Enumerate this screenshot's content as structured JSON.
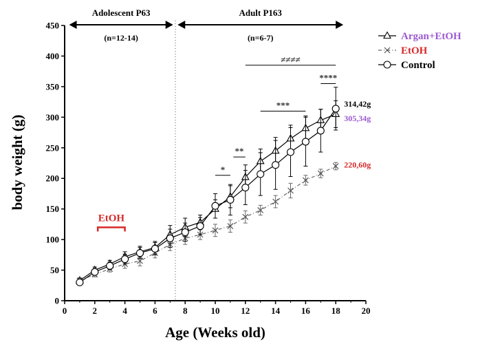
{
  "chart_data": {
    "type": "line",
    "xlabel": "Age (Weeks old)",
    "ylabel": "body weight (g)",
    "xlim": [
      0,
      20
    ],
    "ylim": [
      0,
      450
    ],
    "xticks": [
      0,
      2,
      4,
      6,
      8,
      10,
      12,
      14,
      16,
      18,
      20
    ],
    "yticks": [
      0,
      50,
      100,
      150,
      200,
      250,
      300,
      350,
      400,
      450
    ],
    "grid": false,
    "legend_position": "top-right",
    "series": [
      {
        "name": "Argan+EtOH",
        "color": "#9b59d0",
        "line_color": "#000000",
        "marker": "triangle",
        "dash": "solid",
        "x": [
          1,
          2,
          3,
          4,
          5,
          6,
          7,
          8,
          9,
          10,
          11,
          12,
          13,
          14,
          15,
          16,
          17,
          18
        ],
        "y": [
          33,
          50,
          60,
          72,
          80,
          87,
          108,
          120,
          128,
          150,
          170,
          202,
          228,
          245,
          265,
          282,
          295,
          305
        ],
        "err": [
          4,
          5,
          6,
          8,
          9,
          10,
          15,
          15,
          12,
          15,
          18,
          20,
          20,
          22,
          22,
          20,
          18,
          22
        ]
      },
      {
        "name": "EtOH",
        "color": "#d62828",
        "line_color": "#666666",
        "marker": "x",
        "dash": "dashdot",
        "x": [
          1,
          2,
          3,
          4,
          5,
          6,
          7,
          8,
          9,
          10,
          11,
          12,
          13,
          14,
          15,
          16,
          17,
          18
        ],
        "y": [
          33,
          43,
          52,
          60,
          65,
          78,
          92,
          102,
          108,
          115,
          122,
          137,
          148,
          162,
          180,
          197,
          208,
          220
        ],
        "err": [
          3,
          4,
          5,
          7,
          8,
          8,
          10,
          10,
          8,
          10,
          10,
          10,
          8,
          10,
          12,
          8,
          7,
          6
        ]
      },
      {
        "name": "Control",
        "color": "#000000",
        "line_color": "#000000",
        "marker": "circle",
        "dash": "solid",
        "x": [
          1,
          2,
          3,
          4,
          5,
          6,
          7,
          8,
          9,
          10,
          11,
          12,
          13,
          14,
          15,
          16,
          17,
          18
        ],
        "y": [
          30,
          47,
          57,
          68,
          78,
          85,
          102,
          112,
          122,
          155,
          165,
          185,
          207,
          222,
          243,
          260,
          278,
          314
        ],
        "err": [
          3,
          5,
          6,
          8,
          9,
          10,
          15,
          15,
          14,
          20,
          25,
          28,
          35,
          40,
          40,
          40,
          35,
          35
        ]
      }
    ],
    "end_labels": [
      {
        "text": "314,42g",
        "x": 18,
        "y": 322,
        "color": "#000000"
      },
      {
        "text": "305,34g",
        "x": 18,
        "y": 298,
        "color": "#9b59d0"
      },
      {
        "text": "220,60g",
        "x": 18,
        "y": 222,
        "color": "#d62828"
      }
    ],
    "phases": [
      {
        "label": "Adolescent P63",
        "n_label": "(n=12-14)",
        "x_start": 0.3,
        "x_end": 7.2
      },
      {
        "label": "Adult P163",
        "n_label": "(n=6-7)",
        "x_start": 7.5,
        "x_end": 18.5
      }
    ],
    "divider_x": 7.35,
    "treatment_marker": {
      "label": "EtOH",
      "x_start": 2.2,
      "x_end": 4.0,
      "y": 120,
      "color": "#d62828"
    },
    "significance": [
      {
        "label": "*",
        "x_start": 10.0,
        "x_end": 11.0,
        "y": 205
      },
      {
        "label": "**",
        "x_start": 11.2,
        "x_end": 12.0,
        "y": 235
      },
      {
        "label": "***",
        "x_start": 13.0,
        "x_end": 16.0,
        "y": 310
      },
      {
        "label": "****",
        "x_start": 17.0,
        "x_end": 18.0,
        "y": 355
      },
      {
        "label": "≠≠≠≠",
        "x_start": 12.0,
        "x_end": 18.0,
        "y": 385
      }
    ]
  }
}
